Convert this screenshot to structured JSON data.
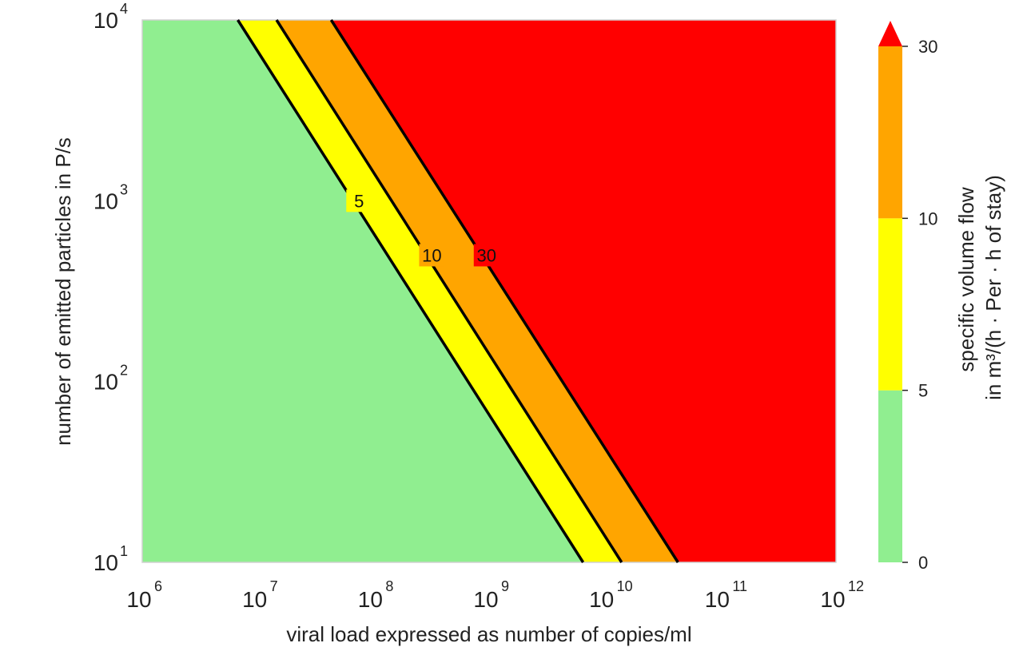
{
  "chart_data": {
    "type": "contourf",
    "xlabel": "viral load expressed as number of copies/ml",
    "ylabel": "number of emitted particles in P/s",
    "x_scale": "log",
    "y_scale": "log",
    "xlim": [
      1000000.0,
      1000000000000.0
    ],
    "ylim": [
      10,
      10000
    ],
    "x_ticks": [
      {
        "base": "10",
        "exp": "6",
        "value": 1000000.0
      },
      {
        "base": "10",
        "exp": "7",
        "value": 10000000.0
      },
      {
        "base": "10",
        "exp": "8",
        "value": 100000000.0
      },
      {
        "base": "10",
        "exp": "9",
        "value": 1000000000.0
      },
      {
        "base": "10",
        "exp": "10",
        "value": 10000000000.0
      },
      {
        "base": "10",
        "exp": "11",
        "value": 100000000000.0
      },
      {
        "base": "10",
        "exp": "12",
        "value": 1000000000000.0
      }
    ],
    "y_ticks": [
      {
        "base": "10",
        "exp": "1",
        "value": 10
      },
      {
        "base": "10",
        "exp": "2",
        "value": 100
      },
      {
        "base": "10",
        "exp": "3",
        "value": 1000
      },
      {
        "base": "10",
        "exp": "4",
        "value": 10000
      }
    ],
    "levels": [
      0,
      5,
      10,
      30
    ],
    "extend": "max",
    "bands": [
      {
        "from": 0,
        "to": 5,
        "color": "#90ee90"
      },
      {
        "from": 5,
        "to": 10,
        "color": "#ffff00"
      },
      {
        "from": 10,
        "to": 30,
        "color": "#ffa500"
      },
      {
        "from": 30,
        "to": null,
        "color": "#ff0000"
      }
    ],
    "contour_lines": [
      {
        "level": 5,
        "label": "5",
        "line": [
          [
            6700000.0,
            10000
          ],
          [
            6500000000.0,
            10
          ]
        ],
        "label_at": [
          75000000.0,
          1000
        ]
      },
      {
        "level": 10,
        "label": "10",
        "line": [
          [
            14500000.0,
            10000
          ],
          [
            14000000000.0,
            10
          ]
        ],
        "label_at": [
          320000000.0,
          500
        ]
      },
      {
        "level": 30,
        "label": "30",
        "line": [
          [
            43000000.0,
            10000
          ],
          [
            43000000000.0,
            10
          ]
        ],
        "label_at": [
          950000000.0,
          500
        ]
      }
    ],
    "colorbar": {
      "label_line1": "specific volume flow",
      "label_line2": "in m³/(h · Per · h of stay)",
      "ticks": [
        "0",
        "5",
        "10",
        "30"
      ]
    }
  }
}
